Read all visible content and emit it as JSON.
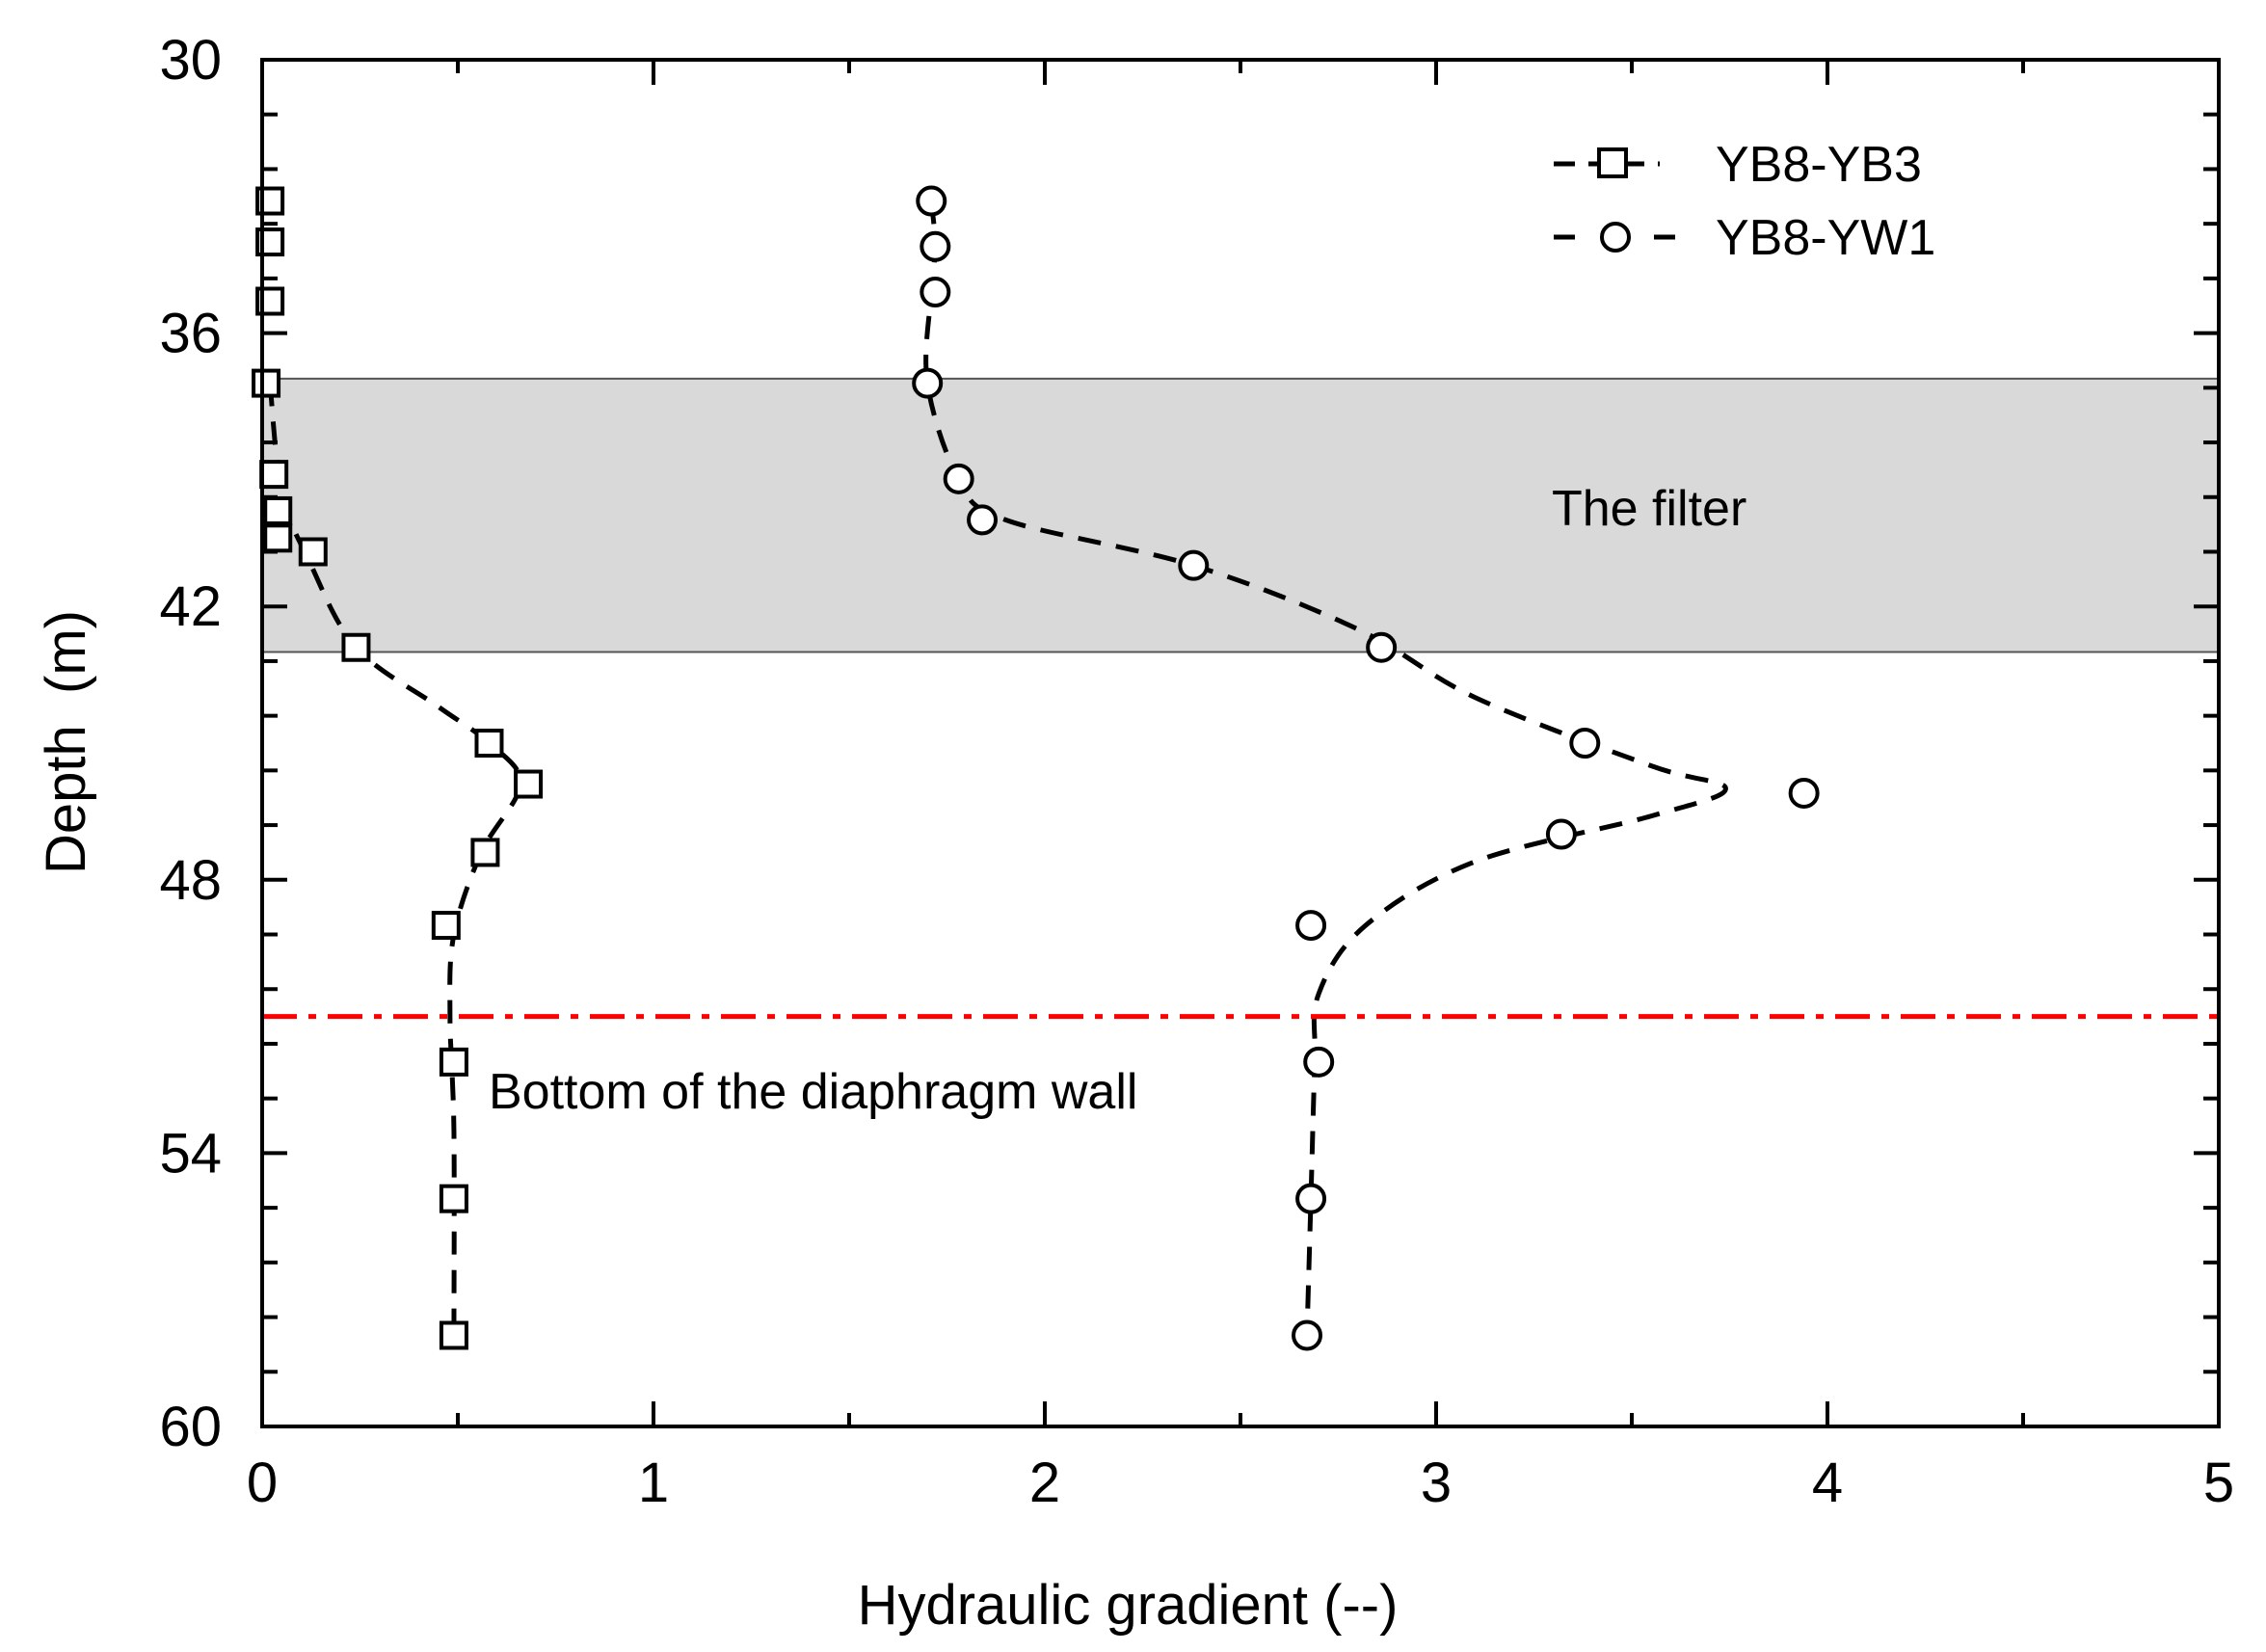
{
  "chart_data": {
    "type": "scatter",
    "title": "",
    "xlabel": "Hydraulic gradient (--)",
    "ylabel": "Depth  (m)",
    "xlim": [
      0,
      5
    ],
    "ylim": [
      30,
      60
    ],
    "y_inverted": true,
    "xticks": [
      0,
      1,
      2,
      3,
      4,
      5
    ],
    "yticks": [
      30,
      36,
      42,
      48,
      54,
      60
    ],
    "xtick_labels": [
      "0",
      "1",
      "2",
      "3",
      "4",
      "5"
    ],
    "ytick_labels": [
      "30",
      "36",
      "42",
      "48",
      "54",
      "60"
    ],
    "grid": false,
    "legend_position": "top-right",
    "series": [
      {
        "name": "YB8-YB3",
        "marker": "square",
        "color": "#000000",
        "points": [
          {
            "x": 0.02,
            "y": 33.1
          },
          {
            "x": 0.02,
            "y": 34.0
          },
          {
            "x": 0.02,
            "y": 35.3
          },
          {
            "x": 0.01,
            "y": 37.1
          },
          {
            "x": 0.03,
            "y": 39.1
          },
          {
            "x": 0.04,
            "y": 39.9
          },
          {
            "x": 0.04,
            "y": 40.5
          },
          {
            "x": 0.13,
            "y": 40.8
          },
          {
            "x": 0.24,
            "y": 42.9
          },
          {
            "x": 0.58,
            "y": 45.0
          },
          {
            "x": 0.68,
            "y": 45.9
          },
          {
            "x": 0.57,
            "y": 47.4
          },
          {
            "x": 0.47,
            "y": 49.0
          },
          {
            "x": 0.49,
            "y": 52.0
          },
          {
            "x": 0.49,
            "y": 55.0
          },
          {
            "x": 0.49,
            "y": 58.0
          }
        ],
        "fit_curve": [
          {
            "x": 0.02,
            "y": 37.1
          },
          {
            "x": 0.05,
            "y": 39.5
          },
          {
            "x": 0.12,
            "y": 41.0
          },
          {
            "x": 0.24,
            "y": 42.9
          },
          {
            "x": 0.45,
            "y": 44.2
          },
          {
            "x": 0.58,
            "y": 45.0
          },
          {
            "x": 0.66,
            "y": 45.9
          },
          {
            "x": 0.56,
            "y": 47.4
          },
          {
            "x": 0.49,
            "y": 49.2
          },
          {
            "x": 0.48,
            "y": 51.0
          },
          {
            "x": 0.49,
            "y": 53.5
          },
          {
            "x": 0.49,
            "y": 58.0
          }
        ]
      },
      {
        "name": "YB8-YW1",
        "marker": "circle",
        "color": "#000000",
        "points": [
          {
            "x": 1.71,
            "y": 33.1
          },
          {
            "x": 1.72,
            "y": 34.1
          },
          {
            "x": 1.72,
            "y": 35.1
          },
          {
            "x": 1.7,
            "y": 37.1
          },
          {
            "x": 1.78,
            "y": 39.2
          },
          {
            "x": 1.84,
            "y": 40.1
          },
          {
            "x": 2.38,
            "y": 41.1
          },
          {
            "x": 2.86,
            "y": 42.9
          },
          {
            "x": 3.38,
            "y": 45.0
          },
          {
            "x": 3.94,
            "y": 46.1
          },
          {
            "x": 3.32,
            "y": 47.0
          },
          {
            "x": 2.68,
            "y": 49.0
          },
          {
            "x": 2.7,
            "y": 52.0
          },
          {
            "x": 2.68,
            "y": 55.0
          },
          {
            "x": 2.67,
            "y": 58.0
          }
        ],
        "fit_curve": [
          {
            "x": 1.71,
            "y": 33.1
          },
          {
            "x": 1.72,
            "y": 34.1
          },
          {
            "x": 1.71,
            "y": 35.1
          },
          {
            "x": 1.7,
            "y": 37.1
          },
          {
            "x": 1.78,
            "y": 39.2
          },
          {
            "x": 1.9,
            "y": 40.1
          },
          {
            "x": 2.38,
            "y": 41.1
          },
          {
            "x": 2.8,
            "y": 42.5
          },
          {
            "x": 3.1,
            "y": 44.0
          },
          {
            "x": 3.55,
            "y": 45.5
          },
          {
            "x": 3.74,
            "y": 46.0
          },
          {
            "x": 3.55,
            "y": 46.6
          },
          {
            "x": 3.1,
            "y": 47.6
          },
          {
            "x": 2.82,
            "y": 49.0
          },
          {
            "x": 2.7,
            "y": 50.5
          },
          {
            "x": 2.69,
            "y": 52.0
          },
          {
            "x": 2.68,
            "y": 55.0
          },
          {
            "x": 2.67,
            "y": 58.0
          }
        ]
      }
    ],
    "regions": [
      {
        "label": "The filter",
        "y_from": 37.0,
        "y_to": 43.0,
        "color": "#d9d9d9"
      }
    ],
    "reference_lines": [
      {
        "label": "Bottom of the diaphragm wall",
        "y": 51.0,
        "color": "#ff0000",
        "style": "dash-dot"
      }
    ]
  }
}
